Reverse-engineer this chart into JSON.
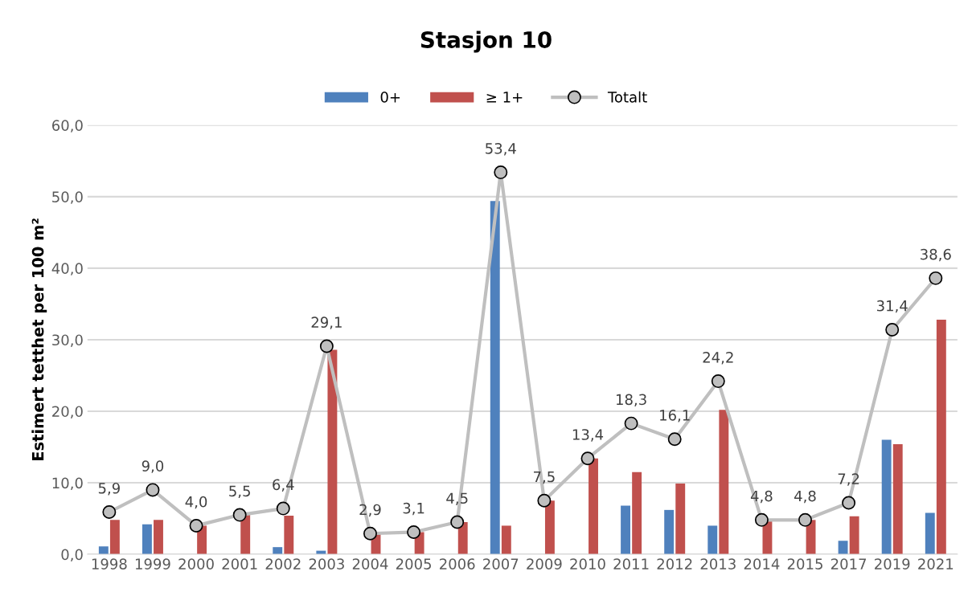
{
  "chart_data": {
    "type": "bar",
    "title": "Stasjon 10",
    "ylabel": "Estimert tetthet per 100 m²",
    "categories": [
      "1998",
      "1999",
      "2000",
      "2001",
      "2002",
      "2003",
      "2004",
      "2005",
      "2006",
      "2007",
      "2009",
      "2010",
      "2011",
      "2012",
      "2013",
      "2014",
      "2015",
      "2017",
      "2019",
      "2021"
    ],
    "series": [
      {
        "name": "0+",
        "color": "#4f81bd",
        "values": [
          1.1,
          4.2,
          0,
          0,
          1.0,
          0.5,
          0,
          0,
          0,
          49.4,
          0,
          0,
          6.8,
          6.2,
          4.0,
          0,
          0,
          1.9,
          16.0,
          5.8
        ]
      },
      {
        "name": "≥ 1+",
        "color": "#c0504d",
        "values": [
          4.8,
          4.8,
          4.0,
          5.5,
          5.4,
          28.6,
          2.9,
          3.1,
          4.5,
          4.0,
          7.5,
          13.4,
          11.5,
          9.9,
          20.2,
          4.8,
          4.8,
          5.3,
          15.4,
          32.8
        ]
      },
      {
        "name": "Totalt",
        "type": "line",
        "color": "#bfbfbf",
        "marker": "circle",
        "values": [
          5.9,
          9.0,
          4.0,
          5.5,
          6.4,
          29.1,
          2.9,
          3.1,
          4.5,
          53.4,
          7.5,
          13.4,
          18.3,
          16.1,
          24.2,
          4.8,
          4.8,
          7.2,
          31.4,
          38.6
        ],
        "value_labels": [
          "5,9",
          "9,0",
          "4,0",
          "5,5",
          "6,4",
          "29,1",
          "2,9",
          "3,1",
          "4,5",
          "53,4",
          "7,5",
          "13,4",
          "18,3",
          "16,1",
          "24,2",
          "4,8",
          "4,8",
          "7,2",
          "31,4",
          "38,6"
        ]
      }
    ],
    "ylim": [
      0,
      60
    ],
    "yticks": [
      {
        "value": 0,
        "label": "0,0"
      },
      {
        "value": 10,
        "label": "10,0"
      },
      {
        "value": 20,
        "label": "20,0"
      },
      {
        "value": 30,
        "label": "30,0"
      },
      {
        "value": 40,
        "label": "40,0"
      },
      {
        "value": 50,
        "label": "50,0"
      },
      {
        "value": 60,
        "label": "60,0"
      }
    ],
    "grid": "y",
    "legend": "top"
  }
}
